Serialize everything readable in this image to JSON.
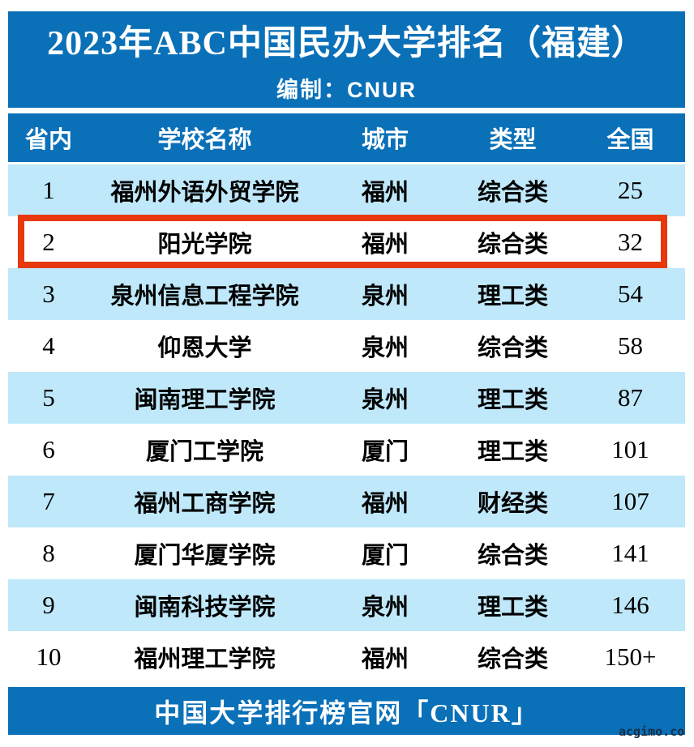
{
  "chart_data": {
    "type": "table",
    "title": "2023年ABC中国民办大学排名（福建）",
    "subtitle": "编制：CNUR",
    "columns": [
      "省内",
      "学校名称",
      "城市",
      "类型",
      "全国"
    ],
    "rows": [
      [
        "1",
        "福州外语外贸学院",
        "福州",
        "综合类",
        "25"
      ],
      [
        "2",
        "阳光学院",
        "福州",
        "综合类",
        "32"
      ],
      [
        "3",
        "泉州信息工程学院",
        "泉州",
        "理工类",
        "54"
      ],
      [
        "4",
        "仰恩大学",
        "泉州",
        "综合类",
        "58"
      ],
      [
        "5",
        "闽南理工学院",
        "泉州",
        "理工类",
        "87"
      ],
      [
        "6",
        "厦门工学院",
        "厦门",
        "理工类",
        "101"
      ],
      [
        "7",
        "福州工商学院",
        "福州",
        "财经类",
        "107"
      ],
      [
        "8",
        "厦门华厦学院",
        "厦门",
        "综合类",
        "141"
      ],
      [
        "9",
        "闽南科技学院",
        "泉州",
        "理工类",
        "146"
      ],
      [
        "10",
        "福州理工学院",
        "福州",
        "综合类",
        "150+"
      ]
    ],
    "highlighted_row_index": 1,
    "footer": "中国大学排行榜官网「CNUR」",
    "watermark": "acgimo.co",
    "layout_hints": {
      "striped": true,
      "stripe_rows": "odd"
    }
  },
  "colors": {
    "primary_blue": "#0a70b8",
    "row_light_blue": "#bfe8fa",
    "highlight_red": "#e8380d",
    "text_on_blue": "#ffffff",
    "text_on_rows": "#000000",
    "watermark": "#162f47"
  }
}
